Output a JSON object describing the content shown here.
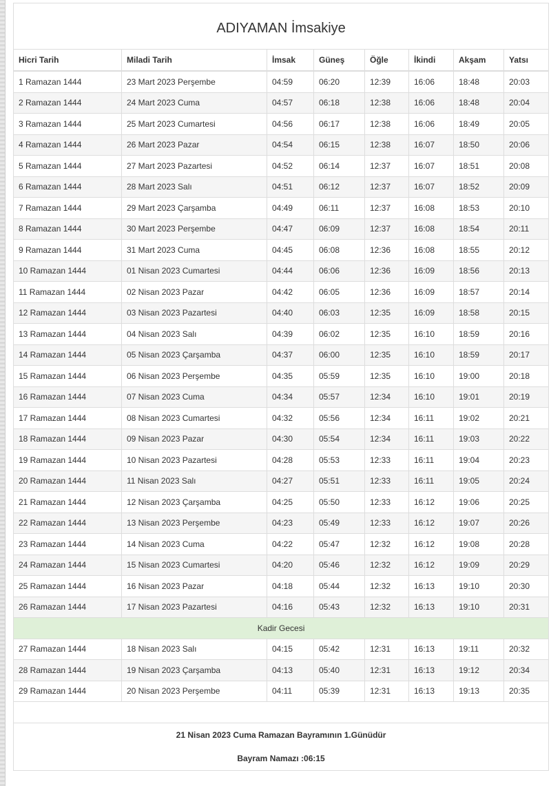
{
  "title": "ADIYAMAN İmsakiye",
  "columns": [
    "Hicri Tarih",
    "Miladi Tarih",
    "İmsak",
    "Güneş",
    "Öğle",
    "İkindi",
    "Akşam",
    "Yatsı"
  ],
  "rows": [
    [
      "1 Ramazan 1444",
      "23 Mart 2023 Perşembe",
      "04:59",
      "06:20",
      "12:39",
      "16:06",
      "18:48",
      "20:03"
    ],
    [
      "2 Ramazan 1444",
      "24 Mart 2023 Cuma",
      "04:57",
      "06:18",
      "12:38",
      "16:06",
      "18:48",
      "20:04"
    ],
    [
      "3 Ramazan 1444",
      "25 Mart 2023 Cumartesi",
      "04:56",
      "06:17",
      "12:38",
      "16:06",
      "18:49",
      "20:05"
    ],
    [
      "4 Ramazan 1444",
      "26 Mart 2023 Pazar",
      "04:54",
      "06:15",
      "12:38",
      "16:07",
      "18:50",
      "20:06"
    ],
    [
      "5 Ramazan 1444",
      "27 Mart 2023 Pazartesi",
      "04:52",
      "06:14",
      "12:37",
      "16:07",
      "18:51",
      "20:08"
    ],
    [
      "6 Ramazan 1444",
      "28 Mart 2023 Salı",
      "04:51",
      "06:12",
      "12:37",
      "16:07",
      "18:52",
      "20:09"
    ],
    [
      "7 Ramazan 1444",
      "29 Mart 2023 Çarşamba",
      "04:49",
      "06:11",
      "12:37",
      "16:08",
      "18:53",
      "20:10"
    ],
    [
      "8 Ramazan 1444",
      "30 Mart 2023 Perşembe",
      "04:47",
      "06:09",
      "12:37",
      "16:08",
      "18:54",
      "20:11"
    ],
    [
      "9 Ramazan 1444",
      "31 Mart 2023 Cuma",
      "04:45",
      "06:08",
      "12:36",
      "16:08",
      "18:55",
      "20:12"
    ],
    [
      "10 Ramazan 1444",
      "01 Nisan 2023 Cumartesi",
      "04:44",
      "06:06",
      "12:36",
      "16:09",
      "18:56",
      "20:13"
    ],
    [
      "11 Ramazan 1444",
      "02 Nisan 2023 Pazar",
      "04:42",
      "06:05",
      "12:36",
      "16:09",
      "18:57",
      "20:14"
    ],
    [
      "12 Ramazan 1444",
      "03 Nisan 2023 Pazartesi",
      "04:40",
      "06:03",
      "12:35",
      "16:09",
      "18:58",
      "20:15"
    ],
    [
      "13 Ramazan 1444",
      "04 Nisan 2023 Salı",
      "04:39",
      "06:02",
      "12:35",
      "16:10",
      "18:59",
      "20:16"
    ],
    [
      "14 Ramazan 1444",
      "05 Nisan 2023 Çarşamba",
      "04:37",
      "06:00",
      "12:35",
      "16:10",
      "18:59",
      "20:17"
    ],
    [
      "15 Ramazan 1444",
      "06 Nisan 2023 Perşembe",
      "04:35",
      "05:59",
      "12:35",
      "16:10",
      "19:00",
      "20:18"
    ],
    [
      "16 Ramazan 1444",
      "07 Nisan 2023 Cuma",
      "04:34",
      "05:57",
      "12:34",
      "16:10",
      "19:01",
      "20:19"
    ],
    [
      "17 Ramazan 1444",
      "08 Nisan 2023 Cumartesi",
      "04:32",
      "05:56",
      "12:34",
      "16:11",
      "19:02",
      "20:21"
    ],
    [
      "18 Ramazan 1444",
      "09 Nisan 2023 Pazar",
      "04:30",
      "05:54",
      "12:34",
      "16:11",
      "19:03",
      "20:22"
    ],
    [
      "19 Ramazan 1444",
      "10 Nisan 2023 Pazartesi",
      "04:28",
      "05:53",
      "12:33",
      "16:11",
      "19:04",
      "20:23"
    ],
    [
      "20 Ramazan 1444",
      "11 Nisan 2023 Salı",
      "04:27",
      "05:51",
      "12:33",
      "16:11",
      "19:05",
      "20:24"
    ],
    [
      "21 Ramazan 1444",
      "12 Nisan 2023 Çarşamba",
      "04:25",
      "05:50",
      "12:33",
      "16:12",
      "19:06",
      "20:25"
    ],
    [
      "22 Ramazan 1444",
      "13 Nisan 2023 Perşembe",
      "04:23",
      "05:49",
      "12:33",
      "16:12",
      "19:07",
      "20:26"
    ],
    [
      "23 Ramazan 1444",
      "14 Nisan 2023 Cuma",
      "04:22",
      "05:47",
      "12:32",
      "16:12",
      "19:08",
      "20:28"
    ],
    [
      "24 Ramazan 1444",
      "15 Nisan 2023 Cumartesi",
      "04:20",
      "05:46",
      "12:32",
      "16:12",
      "19:09",
      "20:29"
    ],
    [
      "25 Ramazan 1444",
      "16 Nisan 2023 Pazar",
      "04:18",
      "05:44",
      "12:32",
      "16:13",
      "19:10",
      "20:30"
    ],
    [
      "26 Ramazan 1444",
      "17 Nisan 2023 Pazartesi",
      "04:16",
      "05:43",
      "12:32",
      "16:13",
      "19:10",
      "20:31"
    ],
    [
      "Kadir Gecesi"
    ],
    [
      "27 Ramazan 1444",
      "18 Nisan 2023 Salı",
      "04:15",
      "05:42",
      "12:31",
      "16:13",
      "19:11",
      "20:32"
    ],
    [
      "28 Ramazan 1444",
      "19 Nisan 2023 Çarşamba",
      "04:13",
      "05:40",
      "12:31",
      "16:13",
      "19:12",
      "20:34"
    ],
    [
      "29 Ramazan 1444",
      "20 Nisan 2023 Perşembe",
      "04:11",
      "05:39",
      "12:31",
      "16:13",
      "19:13",
      "20:35"
    ]
  ],
  "footer": {
    "bayram_text": "21 Nisan 2023 Cuma Ramazan Bayramının 1.Günüdür",
    "bayram_namazi": "Bayram Namazı :06:15"
  },
  "colors": {
    "kadir_row": "#dff0d8",
    "striped_row": "#f5f5f5",
    "border": "#dddddd"
  }
}
